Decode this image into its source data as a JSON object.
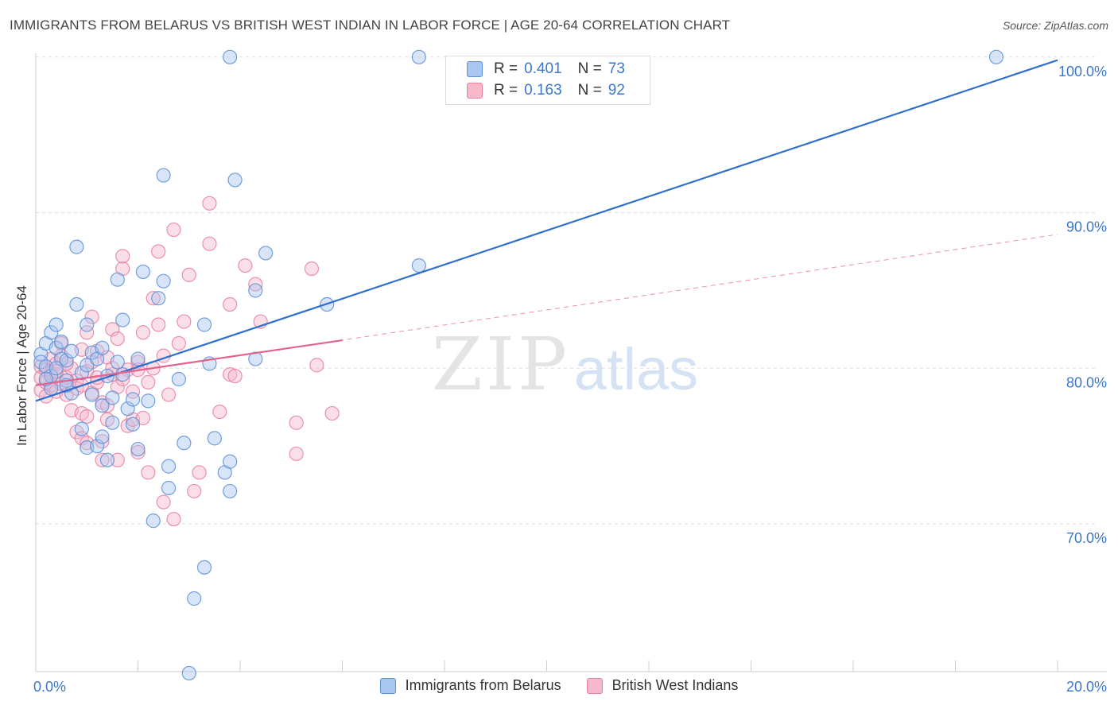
{
  "header": {
    "title": "IMMIGRANTS FROM BELARUS VS BRITISH WEST INDIAN IN LABOR FORCE | AGE 20-64 CORRELATION CHART",
    "source": "Source: ZipAtlas.com"
  },
  "watermark": {
    "zip": "ZIP",
    "atlas": "atlas"
  },
  "legend_top": {
    "rows": [
      {
        "r_label": "R =",
        "r_value": "0.401",
        "n_label": "N =",
        "n_value": "73"
      },
      {
        "r_label": "R =",
        "r_value": "0.163",
        "n_label": "N =",
        "n_value": "92"
      }
    ]
  },
  "legend_bottom": {
    "items": [
      {
        "label": "Immigrants from Belarus"
      },
      {
        "label": "British West Indians"
      }
    ]
  },
  "colors": {
    "belarus_fill": "#a9c6f0",
    "belarus_stroke": "#5b8fd6",
    "belarus_line": "#2f6fd0",
    "bwi_fill": "#f7b8cb",
    "bwi_stroke": "#e77fa0",
    "bwi_line": "#e4628b",
    "tick_label": "#3b78c9",
    "grid": "#dddddd"
  },
  "chart_data": {
    "type": "scatter",
    "ylabel": "In Labor Force | Age 20-64",
    "xlim": [
      0,
      20
    ],
    "ylim": [
      60.5,
      100.5
    ],
    "x_tick_labels": [
      {
        "value": 0,
        "label": "0.0%"
      },
      {
        "value": 20,
        "label": "20.0%"
      }
    ],
    "y_tick_labels": [
      {
        "value": 70,
        "label": "70.0%"
      },
      {
        "value": 80,
        "label": "80.0%"
      },
      {
        "value": 90,
        "label": "90.0%"
      },
      {
        "value": 100,
        "label": "100.0%"
      }
    ],
    "grid": true,
    "legend_position": "top-center",
    "series": [
      {
        "name": "Immigrants from Belarus",
        "R": 0.401,
        "N": 73,
        "trend": {
          "x": [
            0,
            20
          ],
          "y": [
            77.9,
            99.8
          ]
        },
        "points": [
          [
            0.1,
            80.9
          ],
          [
            0.1,
            80.4
          ],
          [
            0.2,
            81.6
          ],
          [
            0.2,
            80.1
          ],
          [
            0.3,
            82.3
          ],
          [
            0.3,
            79.5
          ],
          [
            0.3,
            78.7
          ],
          [
            0.4,
            81.3
          ],
          [
            0.4,
            82.8
          ],
          [
            0.5,
            80.6
          ],
          [
            0.5,
            81.7
          ],
          [
            0.6,
            79.2
          ],
          [
            0.6,
            80.5
          ],
          [
            0.7,
            81.1
          ],
          [
            0.7,
            78.4
          ],
          [
            0.8,
            84.1
          ],
          [
            0.8,
            87.8
          ],
          [
            0.9,
            79.7
          ],
          [
            0.9,
            76.1
          ],
          [
            1.0,
            82.8
          ],
          [
            1.0,
            80.2
          ],
          [
            1.0,
            74.9
          ],
          [
            1.1,
            81.0
          ],
          [
            1.1,
            78.3
          ],
          [
            1.2,
            75.0
          ],
          [
            1.2,
            80.6
          ],
          [
            1.3,
            75.6
          ],
          [
            1.3,
            77.6
          ],
          [
            1.4,
            74.1
          ],
          [
            1.4,
            79.5
          ],
          [
            1.5,
            78.1
          ],
          [
            1.5,
            76.5
          ],
          [
            1.6,
            85.7
          ],
          [
            1.6,
            80.4
          ],
          [
            1.7,
            79.6
          ],
          [
            1.7,
            83.1
          ],
          [
            1.8,
            77.4
          ],
          [
            1.9,
            76.4
          ],
          [
            1.9,
            78.0
          ],
          [
            2.0,
            80.6
          ],
          [
            2.0,
            74.8
          ],
          [
            2.1,
            86.2
          ],
          [
            2.2,
            77.9
          ],
          [
            2.3,
            70.2
          ],
          [
            2.4,
            84.5
          ],
          [
            2.5,
            85.6
          ],
          [
            2.5,
            92.4
          ],
          [
            2.6,
            72.3
          ],
          [
            2.6,
            73.7
          ],
          [
            2.8,
            79.3
          ],
          [
            2.9,
            75.2
          ],
          [
            3.0,
            60.4
          ],
          [
            3.1,
            65.2
          ],
          [
            3.3,
            67.2
          ],
          [
            3.3,
            82.8
          ],
          [
            3.4,
            80.3
          ],
          [
            3.5,
            75.5
          ],
          [
            3.7,
            73.3
          ],
          [
            3.8,
            74.0
          ],
          [
            3.8,
            100.0
          ],
          [
            3.9,
            92.1
          ],
          [
            3.8,
            72.1
          ],
          [
            4.3,
            80.6
          ],
          [
            4.3,
            85.0
          ],
          [
            4.5,
            87.4
          ],
          [
            5.7,
            84.1
          ],
          [
            7.5,
            100.0
          ],
          [
            7.5,
            86.6
          ],
          [
            18.8,
            100.0
          ],
          [
            0.6,
            78.9
          ],
          [
            1.3,
            81.3
          ],
          [
            0.4,
            80.0
          ],
          [
            0.2,
            79.3
          ]
        ]
      },
      {
        "name": "British West Indians",
        "R": 0.163,
        "N": 92,
        "trend": {
          "x": [
            0,
            6
          ],
          "y": [
            78.9,
            81.8
          ]
        },
        "trend_extended": {
          "x": [
            0,
            20
          ],
          "y": [
            78.9,
            88.6
          ]
        },
        "points": [
          [
            0.1,
            80.1
          ],
          [
            0.1,
            79.4
          ],
          [
            0.1,
            78.6
          ],
          [
            0.2,
            79.9
          ],
          [
            0.2,
            79.1
          ],
          [
            0.2,
            78.2
          ],
          [
            0.3,
            80.6
          ],
          [
            0.3,
            79.7
          ],
          [
            0.3,
            78.9
          ],
          [
            0.4,
            80.3
          ],
          [
            0.4,
            79.6
          ],
          [
            0.4,
            78.5
          ],
          [
            0.5,
            81.6
          ],
          [
            0.5,
            79.0
          ],
          [
            0.5,
            80.8
          ],
          [
            0.6,
            79.4
          ],
          [
            0.6,
            78.3
          ],
          [
            0.7,
            80.0
          ],
          [
            0.7,
            77.3
          ],
          [
            0.8,
            79.2
          ],
          [
            0.8,
            75.9
          ],
          [
            0.8,
            78.7
          ],
          [
            0.9,
            81.2
          ],
          [
            0.9,
            77.1
          ],
          [
            0.9,
            75.5
          ],
          [
            1.0,
            79.8
          ],
          [
            1.0,
            82.3
          ],
          [
            1.0,
            76.9
          ],
          [
            1.1,
            83.3
          ],
          [
            1.1,
            80.4
          ],
          [
            1.1,
            78.4
          ],
          [
            1.2,
            81.1
          ],
          [
            1.2,
            79.1
          ],
          [
            1.3,
            75.3
          ],
          [
            1.3,
            77.8
          ],
          [
            1.3,
            74.1
          ],
          [
            1.4,
            80.7
          ],
          [
            1.4,
            76.7
          ],
          [
            1.5,
            82.5
          ],
          [
            1.5,
            79.6
          ],
          [
            1.6,
            81.9
          ],
          [
            1.6,
            78.8
          ],
          [
            1.6,
            74.1
          ],
          [
            1.7,
            86.4
          ],
          [
            1.7,
            87.2
          ],
          [
            1.8,
            76.3
          ],
          [
            1.8,
            79.9
          ],
          [
            1.9,
            78.5
          ],
          [
            1.9,
            76.7
          ],
          [
            2.0,
            80.4
          ],
          [
            2.0,
            74.6
          ],
          [
            2.1,
            82.3
          ],
          [
            2.1,
            76.8
          ],
          [
            2.2,
            73.3
          ],
          [
            2.3,
            80.0
          ],
          [
            2.3,
            84.5
          ],
          [
            2.4,
            87.5
          ],
          [
            2.4,
            82.8
          ],
          [
            2.5,
            71.4
          ],
          [
            2.6,
            78.3
          ],
          [
            2.7,
            88.9
          ],
          [
            2.7,
            70.3
          ],
          [
            2.8,
            81.6
          ],
          [
            2.9,
            83.0
          ],
          [
            3.0,
            86.0
          ],
          [
            3.1,
            72.1
          ],
          [
            3.2,
            73.3
          ],
          [
            3.4,
            88.0
          ],
          [
            3.4,
            90.6
          ],
          [
            3.6,
            77.2
          ],
          [
            3.8,
            79.6
          ],
          [
            3.8,
            84.1
          ],
          [
            3.9,
            79.5
          ],
          [
            4.1,
            86.6
          ],
          [
            4.3,
            85.4
          ],
          [
            4.4,
            83.0
          ],
          [
            5.1,
            76.5
          ],
          [
            5.1,
            74.5
          ],
          [
            5.4,
            86.4
          ],
          [
            5.5,
            80.2
          ],
          [
            5.8,
            77.1
          ],
          [
            1.5,
            80.0
          ],
          [
            1.2,
            79.4
          ],
          [
            0.9,
            78.9
          ],
          [
            0.6,
            80.3
          ],
          [
            0.4,
            79.8
          ],
          [
            2.0,
            79.9
          ],
          [
            1.7,
            79.3
          ],
          [
            1.4,
            77.6
          ],
          [
            2.5,
            80.8
          ],
          [
            1.0,
            75.2
          ],
          [
            2.2,
            79.1
          ]
        ]
      }
    ]
  }
}
